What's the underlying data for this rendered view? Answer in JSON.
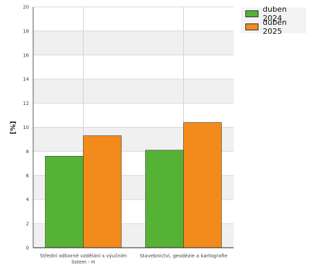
{
  "chart_data": {
    "type": "bar",
    "categories": [
      "Střední odborné vzdělání s výučním listem - H",
      "Stavebnictví, geodézie a kartografie"
    ],
    "category_lines": [
      [
        "Střední odborné vzdělání s výučním",
        "listem - H"
      ],
      [
        "Stavebnictví, geodézie a kartografie"
      ]
    ],
    "series": [
      {
        "name": "duben 2024",
        "color": "#55b234",
        "values": [
          7.6,
          8.1
        ]
      },
      {
        "name": "duben 2025",
        "color": "#f28a1c",
        "values": [
          9.3,
          10.4
        ]
      }
    ],
    "title": "",
    "xlabel": "",
    "ylabel": "[%]",
    "ylim": [
      0,
      20
    ],
    "yticks": [
      0,
      2,
      4,
      6,
      8,
      10,
      12,
      14,
      16,
      18,
      20
    ],
    "grid": true,
    "legend": "top-right"
  }
}
